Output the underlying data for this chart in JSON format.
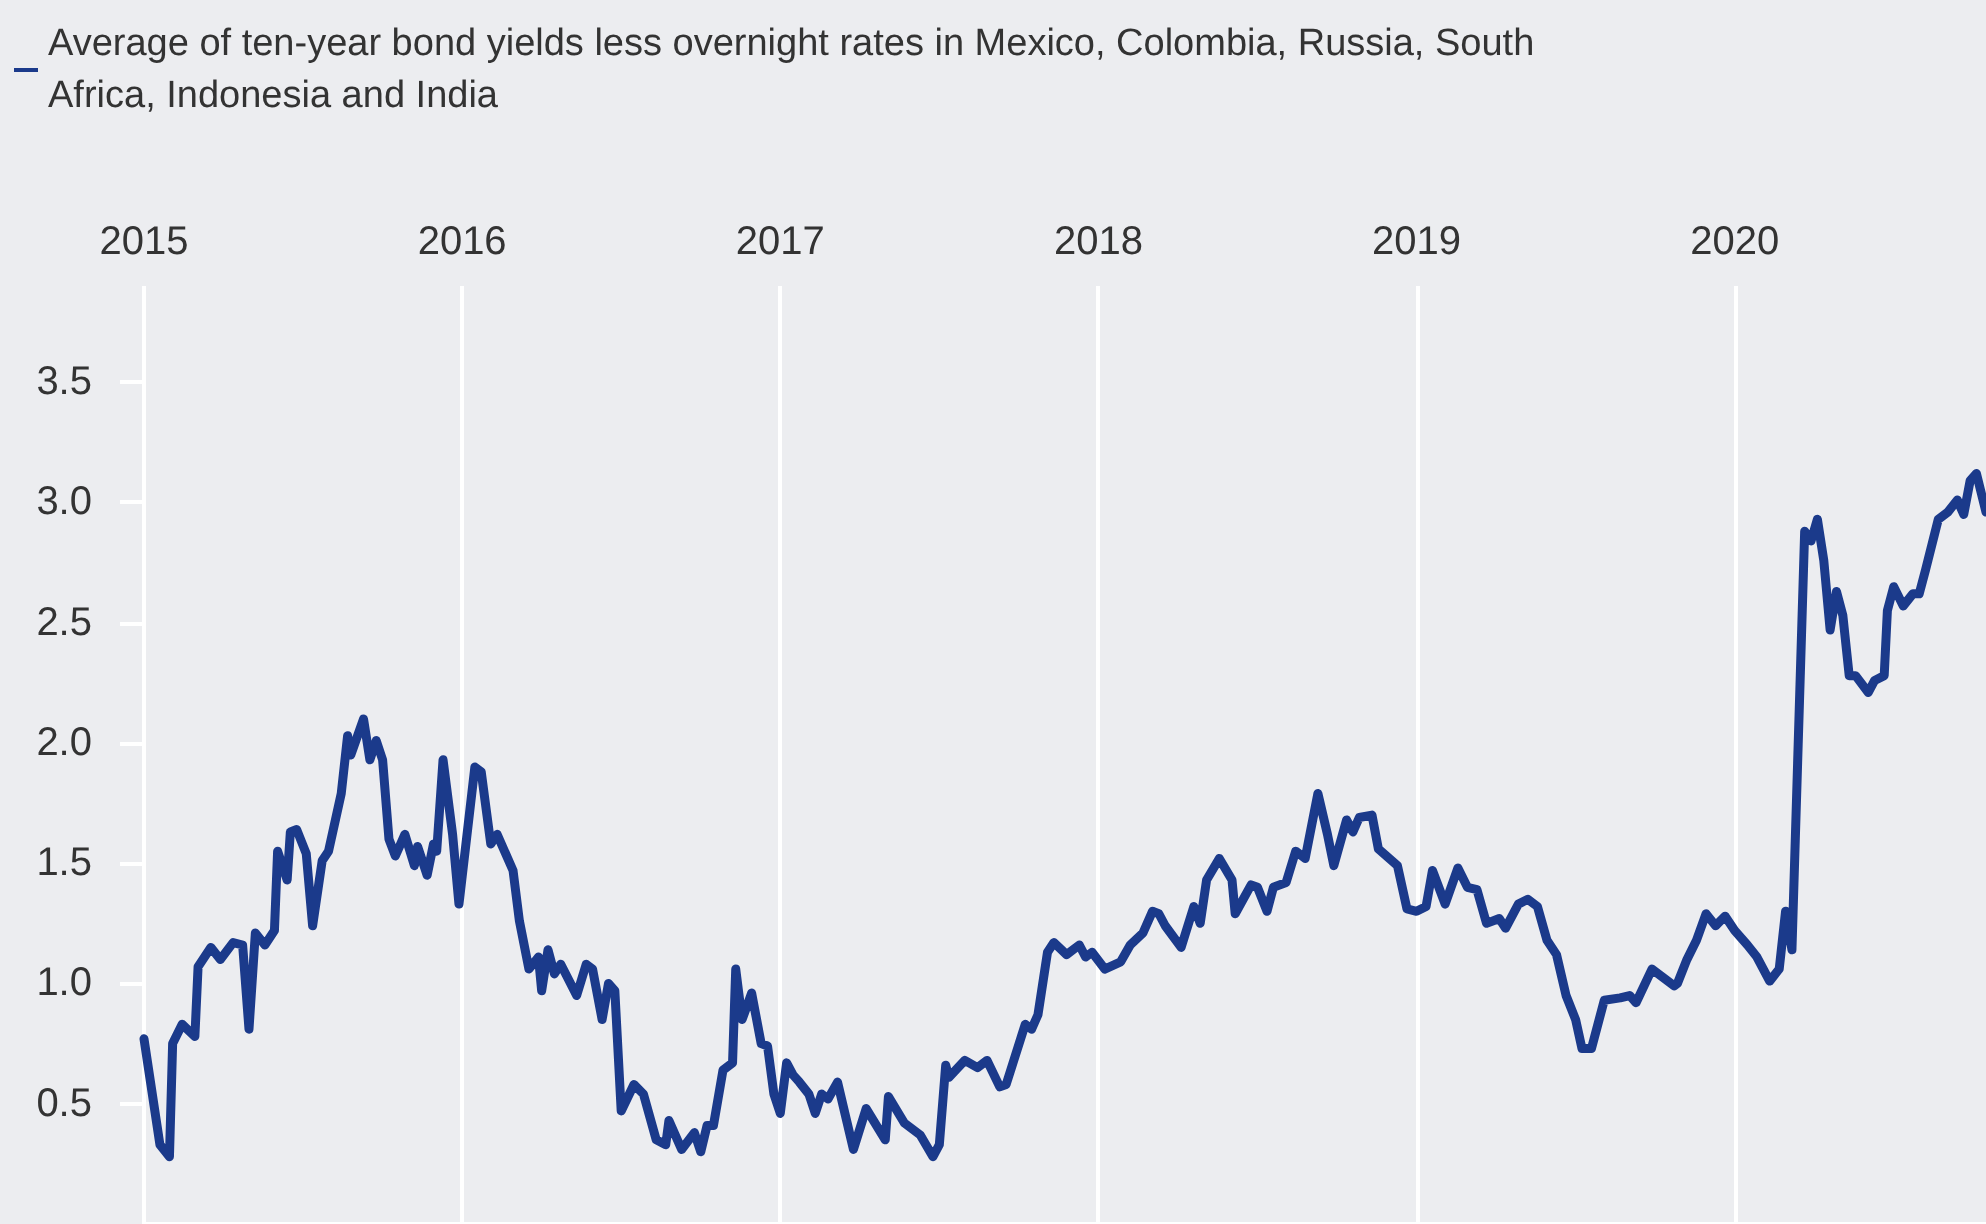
{
  "chart_data": {
    "type": "line",
    "legend": "top left",
    "grid": "x",
    "xlim": [
      2015,
      2020.79
    ],
    "xticks": [
      2015,
      2016,
      2017,
      2018,
      2019,
      2020
    ],
    "ylim": [
      0,
      3.9
    ],
    "yticks": [
      0.5,
      {
        "value": 1,
        "label": "1.0"
      },
      1.5,
      {
        "value": 2,
        "label": "2.0"
      },
      2.5,
      {
        "value": 3,
        "label": "3.0"
      },
      3.5
    ],
    "x": [
      2015.0,
      2015.05,
      2015.08,
      2015.09,
      2015.12,
      2015.16,
      2015.17,
      2015.21,
      2015.24,
      2015.28,
      2015.31,
      2015.33,
      2015.35,
      2015.38,
      2015.41,
      2015.42,
      2015.45,
      2015.46,
      2015.48,
      2015.51,
      2015.53,
      2015.56,
      2015.58,
      2015.62,
      2015.64,
      2015.65,
      2015.69,
      2015.71,
      2015.73,
      2015.75,
      2015.77,
      2015.79,
      2015.82,
      2015.85,
      2015.86,
      2015.89,
      2015.91,
      2015.92,
      2015.94,
      2015.97,
      2015.99,
      2016.04,
      2016.06,
      2016.09,
      2016.11,
      2016.16,
      2016.18,
      2016.21,
      2016.24,
      2016.25,
      2016.27,
      2016.29,
      2016.31,
      2016.36,
      2016.39,
      2016.41,
      2016.44,
      2016.46,
      2016.48,
      2016.5,
      2016.54,
      2016.57,
      2016.61,
      2016.64,
      2016.65,
      2016.69,
      2016.73,
      2016.75,
      2016.77,
      2016.79,
      2016.82,
      2016.85,
      2016.86,
      2016.88,
      2016.91,
      2016.94,
      2016.96,
      2016.98,
      2017.0,
      2017.02,
      2017.04,
      2017.06,
      2017.09,
      2017.11,
      2017.13,
      2017.15,
      2017.18,
      2017.23,
      2017.27,
      2017.33,
      2017.34,
      2017.39,
      2017.44,
      2017.48,
      2017.5,
      2017.52,
      2017.53,
      2017.58,
      2017.62,
      2017.65,
      2017.69,
      2017.71,
      2017.77,
      2017.79,
      2017.81,
      2017.84,
      2017.86,
      2017.9,
      2017.94,
      2017.96,
      2017.98,
      2018.02,
      2018.07,
      2018.1,
      2018.14,
      2018.17,
      2018.19,
      2018.21,
      2018.26,
      2018.3,
      2018.32,
      2018.34,
      2018.38,
      2018.42,
      2018.43,
      2018.48,
      2018.5,
      2018.53,
      2018.55,
      2018.59,
      2018.62,
      2018.65,
      2018.69,
      2018.72,
      2018.74,
      2018.78,
      2018.8,
      2018.82,
      2018.86,
      2018.88,
      2018.94,
      2018.97,
      2019.0,
      2019.03,
      2019.05,
      2019.09,
      2019.13,
      2019.16,
      2019.19,
      2019.22,
      2019.26,
      2019.28,
      2019.32,
      2019.35,
      2019.38,
      2019.41,
      2019.44,
      2019.47,
      2019.5,
      2019.52,
      2019.55,
      2019.59,
      2019.64,
      2019.67,
      2019.69,
      2019.74,
      2019.81,
      2019.82,
      2019.85,
      2019.88,
      2019.91,
      2019.94,
      2019.97,
      2020.0,
      2020.04,
      2020.07,
      2020.11,
      2020.14,
      2020.16,
      2020.18,
      2020.22,
      2020.24,
      2020.26,
      2020.28,
      2020.3,
      2020.32,
      2020.34,
      2020.36,
      2020.38,
      2020.42,
      2020.44,
      2020.47,
      2020.48,
      2020.5,
      2020.53,
      2020.56,
      2020.58,
      2020.6,
      2020.64,
      2020.67,
      2020.7,
      2020.72,
      2020.74,
      2020.76,
      2020.79
    ],
    "series": [
      {
        "name": "Average of ten-year bond yields less overnight rates in Mexico, Colombia, Russia, South Africa, Indonesia and India",
        "color": "#1b3a8b",
        "values": [
          0.77,
          0.33,
          0.28,
          0.75,
          0.83,
          0.78,
          1.07,
          1.15,
          1.1,
          1.17,
          1.16,
          0.81,
          1.21,
          1.16,
          1.22,
          1.55,
          1.43,
          1.63,
          1.64,
          1.54,
          1.24,
          1.51,
          1.55,
          1.79,
          2.03,
          1.95,
          2.1,
          1.93,
          2.01,
          1.93,
          1.6,
          1.53,
          1.62,
          1.49,
          1.57,
          1.45,
          1.58,
          1.55,
          1.93,
          1.62,
          1.33,
          1.9,
          1.88,
          1.58,
          1.62,
          1.47,
          1.26,
          1.06,
          1.11,
          0.97,
          1.14,
          1.04,
          1.08,
          0.95,
          1.08,
          1.06,
          0.85,
          1.0,
          0.97,
          0.47,
          0.58,
          0.54,
          0.35,
          0.33,
          0.43,
          0.31,
          0.38,
          0.3,
          0.41,
          0.41,
          0.64,
          0.67,
          1.06,
          0.85,
          0.96,
          0.75,
          0.74,
          0.54,
          0.46,
          0.67,
          0.62,
          0.59,
          0.54,
          0.46,
          0.54,
          0.52,
          0.59,
          0.31,
          0.48,
          0.35,
          0.53,
          0.42,
          0.37,
          0.28,
          0.33,
          0.66,
          0.61,
          0.68,
          0.65,
          0.68,
          0.57,
          0.58,
          0.83,
          0.81,
          0.87,
          1.13,
          1.17,
          1.12,
          1.16,
          1.11,
          1.13,
          1.06,
          1.09,
          1.16,
          1.21,
          1.3,
          1.29,
          1.24,
          1.15,
          1.32,
          1.25,
          1.43,
          1.52,
          1.43,
          1.29,
          1.41,
          1.4,
          1.3,
          1.4,
          1.42,
          1.55,
          1.52,
          1.79,
          1.62,
          1.49,
          1.68,
          1.63,
          1.69,
          1.7,
          1.56,
          1.49,
          1.31,
          1.3,
          1.32,
          1.47,
          1.33,
          1.48,
          1.4,
          1.39,
          1.25,
          1.27,
          1.23,
          1.33,
          1.35,
          1.32,
          1.18,
          1.12,
          0.95,
          0.85,
          0.73,
          0.73,
          0.93,
          0.94,
          0.95,
          0.92,
          1.06,
          0.99,
          1.0,
          1.1,
          1.18,
          1.29,
          1.24,
          1.28,
          1.22,
          1.16,
          1.11,
          1.01,
          1.06,
          1.3,
          1.14,
          2.88,
          2.84,
          2.93,
          2.76,
          2.47,
          2.63,
          2.53,
          2.28,
          2.28,
          2.21,
          2.26,
          2.28,
          2.55,
          2.65,
          2.57,
          2.62,
          2.62,
          2.72,
          2.93,
          2.96,
          3.01,
          2.95,
          3.09,
          3.12,
          2.96
        ]
      }
    ]
  }
}
